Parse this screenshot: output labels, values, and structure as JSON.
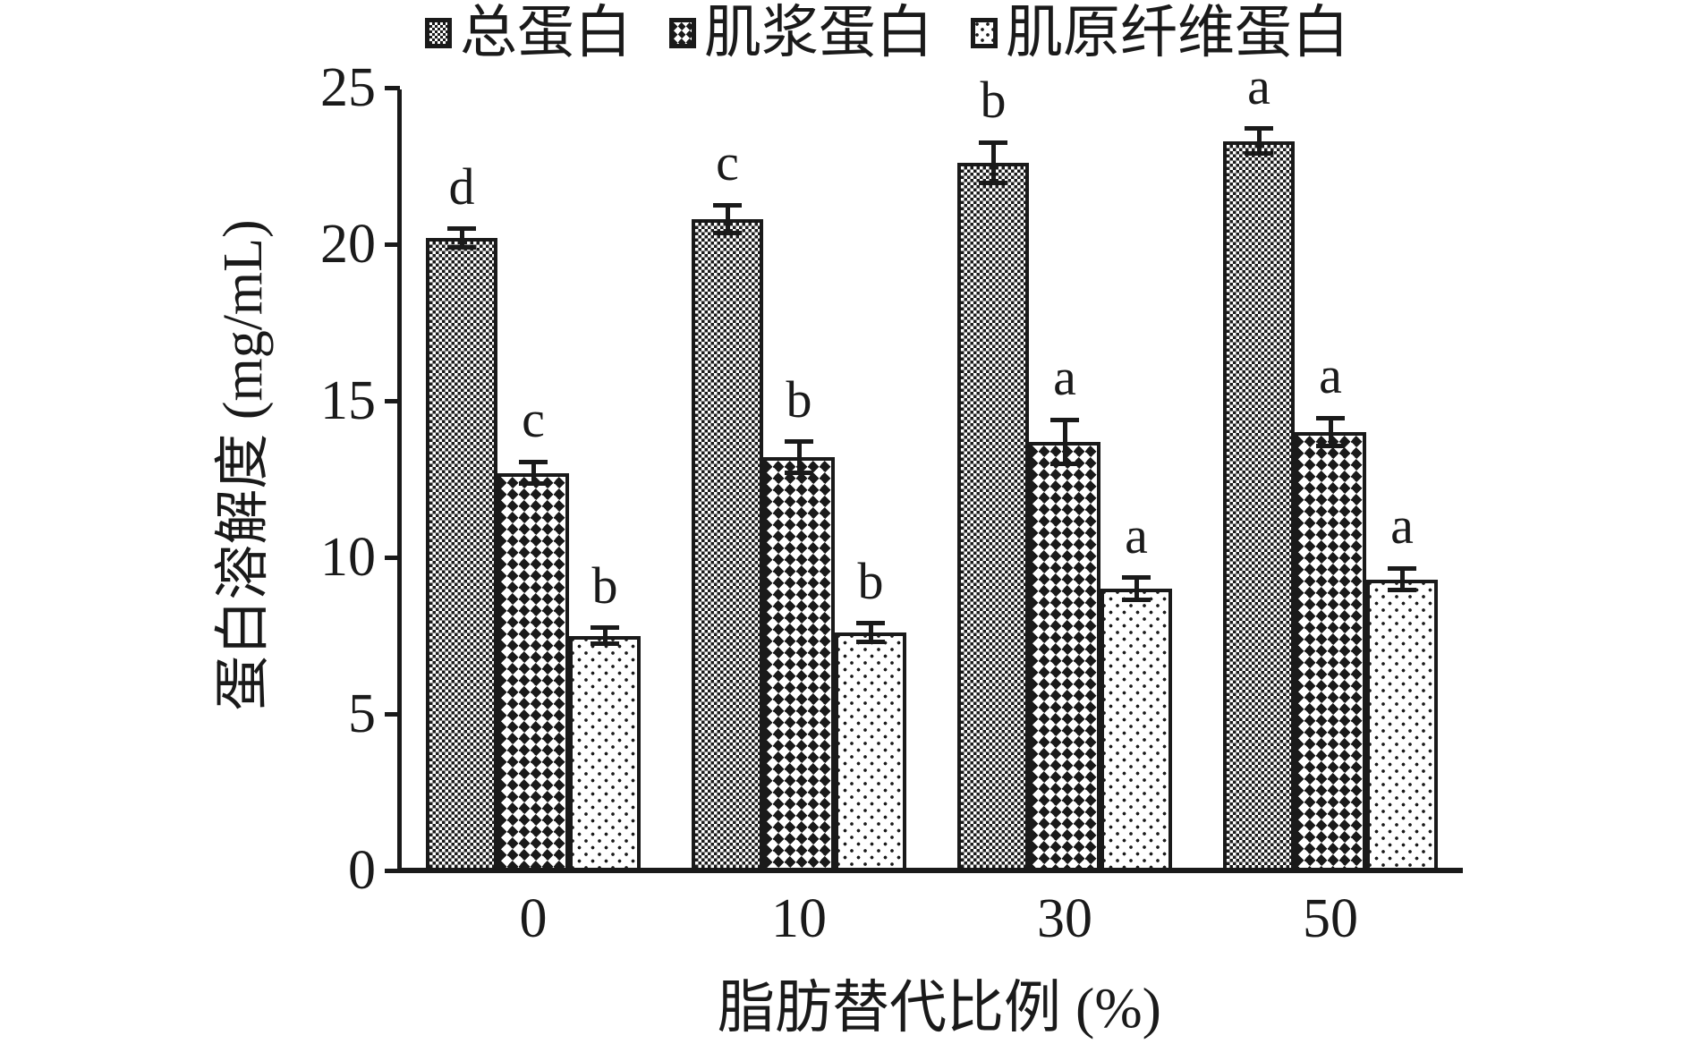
{
  "colors": {
    "ink": "#1a1a1a",
    "background": "#ffffff"
  },
  "chart_data": {
    "type": "bar",
    "title": "",
    "xlabel": "脂肪替代比例 (%)",
    "ylabel": "蛋白溶解度 (mg/mL)",
    "categories": [
      "0",
      "10",
      "30",
      "50"
    ],
    "ylim": [
      0,
      25
    ],
    "yticks": [
      0,
      5,
      10,
      15,
      20,
      25
    ],
    "grid": false,
    "legend_position": "top",
    "error_bars": true,
    "series": [
      {
        "name": "总蛋白",
        "pattern": "dense-checker",
        "values": [
          20.2,
          20.8,
          22.6,
          23.3
        ],
        "errors": [
          0.3,
          0.45,
          0.65,
          0.4
        ],
        "letters": [
          "d",
          "c",
          "b",
          "a"
        ]
      },
      {
        "name": "肌浆蛋白",
        "pattern": "diamond-checker",
        "values": [
          12.7,
          13.2,
          13.7,
          14.0
        ],
        "errors": [
          0.35,
          0.5,
          0.7,
          0.45
        ],
        "letters": [
          "c",
          "b",
          "a",
          "a"
        ]
      },
      {
        "name": "肌原纤维蛋白",
        "pattern": "dot-grid",
        "values": [
          7.5,
          7.6,
          9.0,
          9.3
        ],
        "errors": [
          0.25,
          0.3,
          0.35,
          0.35
        ],
        "letters": [
          "b",
          "b",
          "a",
          "a"
        ]
      }
    ]
  }
}
